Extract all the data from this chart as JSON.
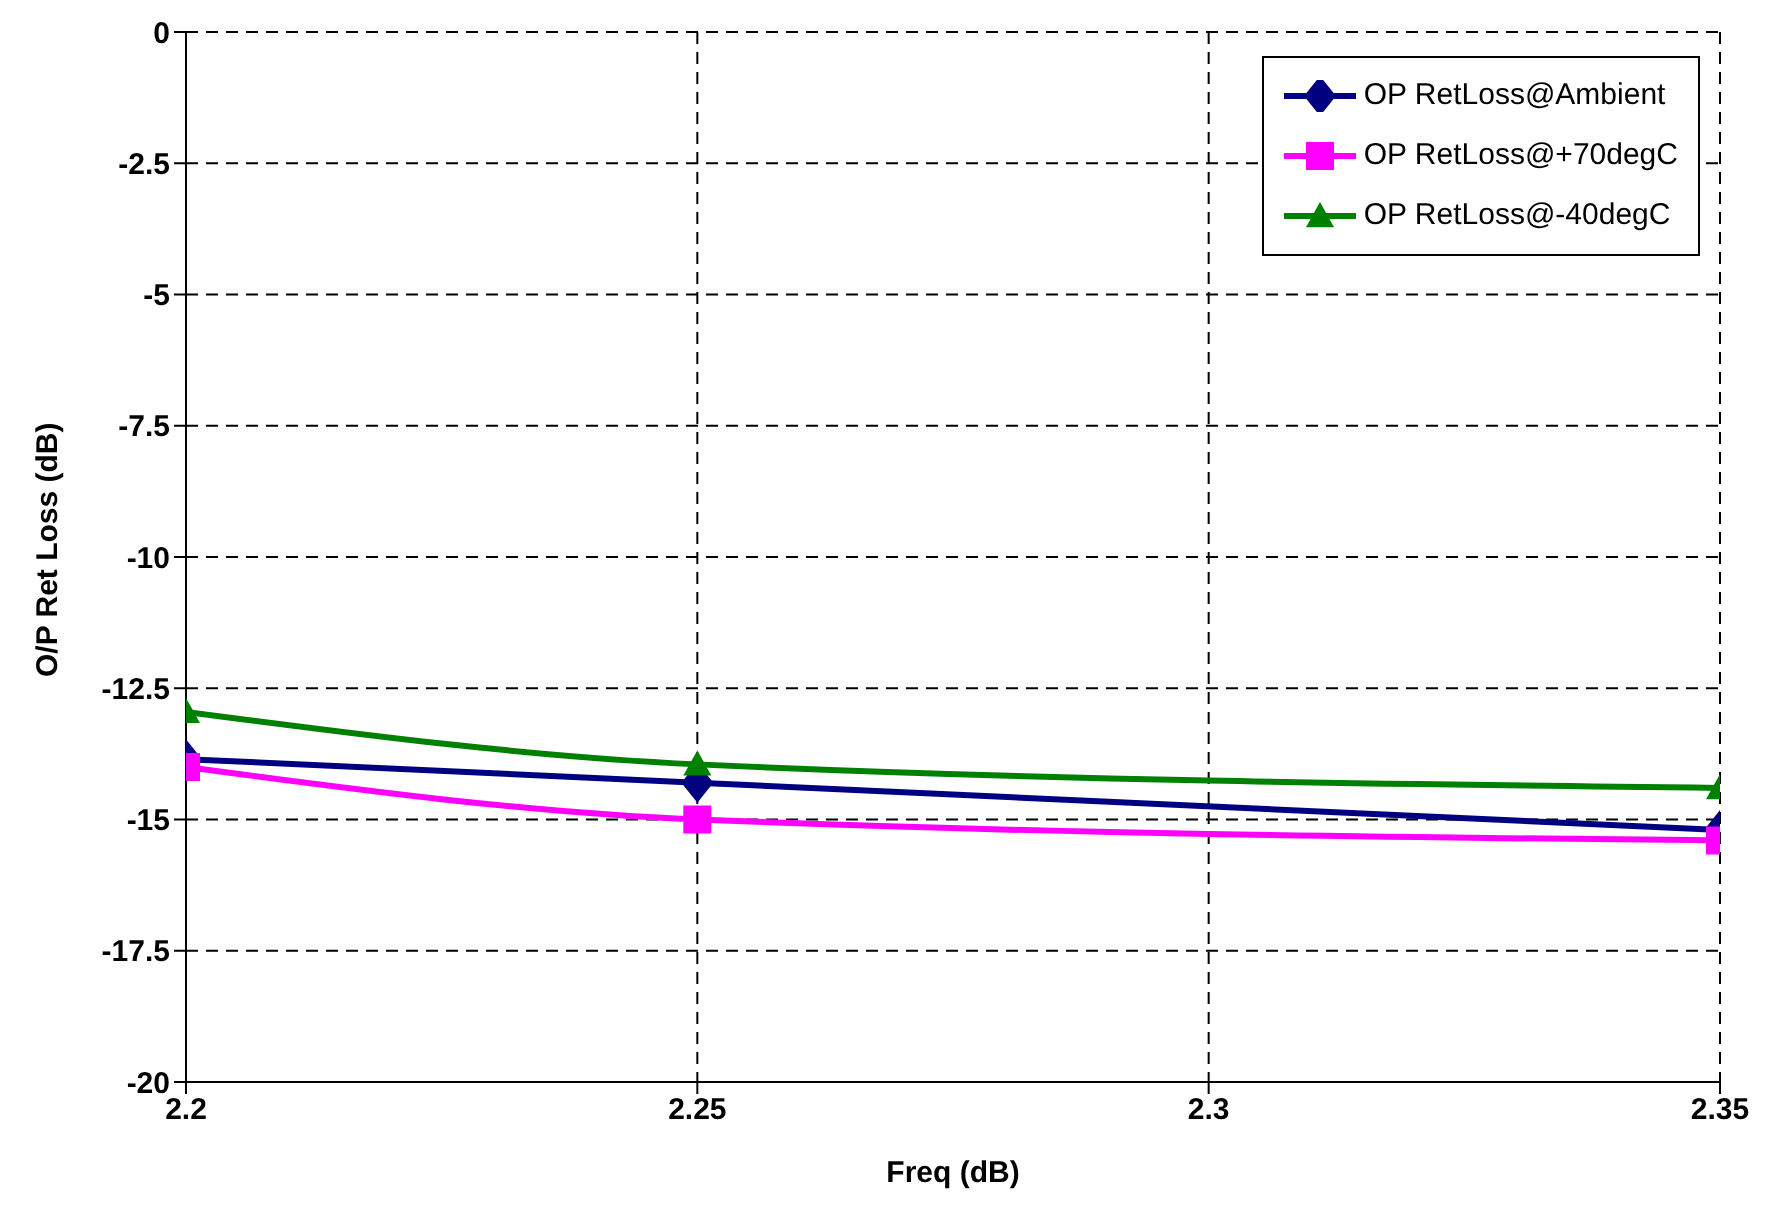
{
  "chart_data": {
    "type": "line",
    "xlabel": "Freq (dB)",
    "ylabel": "O/P Ret Loss (dB)",
    "x": [
      2.2,
      2.25,
      2.35
    ],
    "series": [
      {
        "name": "OP RetLoss@Ambient",
        "color": "#000080",
        "marker": "diamond",
        "values": [
          -13.85,
          -14.3,
          -15.2
        ]
      },
      {
        "name": "OP RetLoss@+70degC",
        "color": "#ff00ff",
        "marker": "square",
        "values": [
          -14.0,
          -15.0,
          -15.4
        ]
      },
      {
        "name": "OP RetLoss@-40degC",
        "color": "#008000",
        "marker": "triangle",
        "values": [
          -12.95,
          -13.95,
          -14.4
        ]
      }
    ],
    "xlim": [
      2.2,
      2.35
    ],
    "xticks": [
      2.2,
      2.25,
      2.3,
      2.35
    ],
    "ylim": [
      -20,
      0
    ],
    "yticks": [
      0,
      -2.5,
      -5,
      -7.5,
      -10,
      -12.5,
      -15,
      -17.5,
      -20
    ],
    "grid": true,
    "legend": "top right",
    "line_style": "solid"
  }
}
